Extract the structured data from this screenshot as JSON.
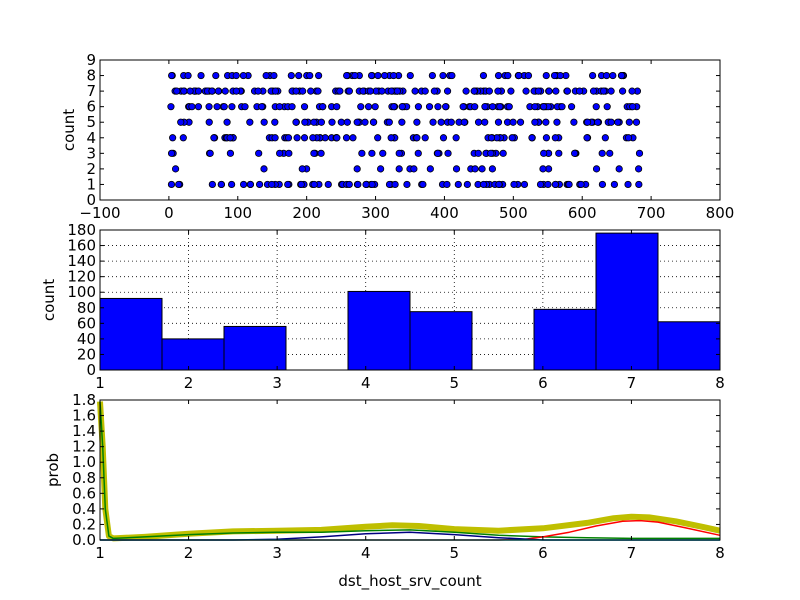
{
  "chart_data": [
    {
      "type": "scatter",
      "ylabel": "count",
      "xlim": [
        -100,
        800
      ],
      "ylim": [
        0,
        9
      ],
      "xticks": [
        "−100",
        "0",
        "100",
        "200",
        "300",
        "400",
        "500",
        "600",
        "700",
        "800"
      ],
      "yticks": [
        "0",
        "1",
        "2",
        "3",
        "4",
        "5",
        "6",
        "7",
        "8",
        "9"
      ],
      "x_range_of_points": [
        0,
        685
      ],
      "y_levels": [
        1,
        2,
        3,
        4,
        5,
        6,
        7,
        8
      ],
      "points_per_level": [
        75,
        20,
        40,
        60,
        60,
        75,
        100,
        60
      ],
      "marker_color": "#0000ff",
      "grid": false
    },
    {
      "type": "bar",
      "ylabel": "count",
      "xlim": [
        1,
        8
      ],
      "ylim": [
        0,
        180
      ],
      "xticks": [
        "1",
        "2",
        "3",
        "4",
        "5",
        "6",
        "7",
        "8"
      ],
      "yticks": [
        "0",
        "20",
        "40",
        "60",
        "80",
        "100",
        "120",
        "140",
        "160",
        "180"
      ],
      "bins": [
        {
          "x0": 1.0,
          "x1": 1.7,
          "value": 92
        },
        {
          "x0": 1.7,
          "x1": 2.4,
          "value": 40
        },
        {
          "x0": 2.4,
          "x1": 3.1,
          "value": 56
        },
        {
          "x0": 3.1,
          "x1": 3.8,
          "value": 0
        },
        {
          "x0": 3.8,
          "x1": 4.5,
          "value": 101
        },
        {
          "x0": 4.5,
          "x1": 5.2,
          "value": 75
        },
        {
          "x0": 5.2,
          "x1": 5.9,
          "value": 0
        },
        {
          "x0": 5.9,
          "x1": 6.6,
          "value": 78
        },
        {
          "x0": 6.6,
          "x1": 7.3,
          "value": 176
        },
        {
          "x0": 7.3,
          "x1": 8.0,
          "value": 62
        }
      ],
      "bar_color": "#0000ff",
      "grid": true
    },
    {
      "type": "line",
      "xlabel": "dst_host_srv_count",
      "ylabel": "prob",
      "xlim": [
        1,
        8
      ],
      "ylim": [
        0,
        1.8
      ],
      "xticks": [
        "1",
        "2",
        "3",
        "4",
        "5",
        "6",
        "7",
        "8"
      ],
      "yticks": [
        "0.0",
        "0.2",
        "0.4",
        "0.6",
        "0.8",
        "1.0",
        "1.2",
        "1.4",
        "1.6",
        "1.8"
      ],
      "series": [
        {
          "color": "#bfbf00",
          "width": 6,
          "x": [
            1.0,
            1.03,
            1.06,
            1.1,
            1.15,
            1.5,
            2.0,
            2.5,
            3.0,
            3.5,
            4.0,
            4.3,
            4.6,
            5.0,
            5.5,
            6.0,
            6.5,
            6.8,
            7.0,
            7.2,
            7.5,
            7.8,
            8.0
          ],
          "y": [
            1.78,
            1.2,
            0.4,
            0.05,
            0.02,
            0.04,
            0.08,
            0.11,
            0.12,
            0.13,
            0.17,
            0.19,
            0.18,
            0.14,
            0.12,
            0.15,
            0.22,
            0.28,
            0.3,
            0.29,
            0.24,
            0.17,
            0.12
          ]
        },
        {
          "color": "#008000",
          "width": 1.5,
          "x": [
            1.0,
            1.03,
            1.06,
            1.1,
            1.15,
            1.5,
            2.0,
            2.5,
            3.0,
            3.5,
            4.0,
            4.5,
            5.0,
            5.5,
            6.0,
            6.5,
            7.0,
            7.5,
            8.0
          ],
          "y": [
            1.78,
            1.2,
            0.4,
            0.05,
            0.02,
            0.04,
            0.07,
            0.09,
            0.1,
            0.1,
            0.12,
            0.13,
            0.1,
            0.06,
            0.04,
            0.03,
            0.02,
            0.02,
            0.02
          ]
        },
        {
          "color": "#ff0000",
          "width": 1.5,
          "x": [
            1.0,
            5.5,
            5.8,
            6.0,
            6.3,
            6.6,
            6.9,
            7.1,
            7.3,
            7.6,
            8.0
          ],
          "y": [
            0.0,
            0.0,
            0.01,
            0.04,
            0.1,
            0.18,
            0.24,
            0.25,
            0.23,
            0.16,
            0.06
          ]
        },
        {
          "color": "#000080",
          "width": 1.5,
          "x": [
            1.0,
            2.5,
            3.0,
            3.5,
            4.0,
            4.5,
            5.0,
            5.5,
            6.0,
            8.0
          ],
          "y": [
            0.0,
            0.0,
            0.01,
            0.04,
            0.08,
            0.1,
            0.07,
            0.03,
            0.0,
            0.0
          ]
        },
        {
          "color": "#00bfbf",
          "width": 1.5,
          "x": [
            1.0,
            8.0
          ],
          "y": [
            0.0,
            0.0
          ]
        }
      ],
      "grid": false
    }
  ]
}
